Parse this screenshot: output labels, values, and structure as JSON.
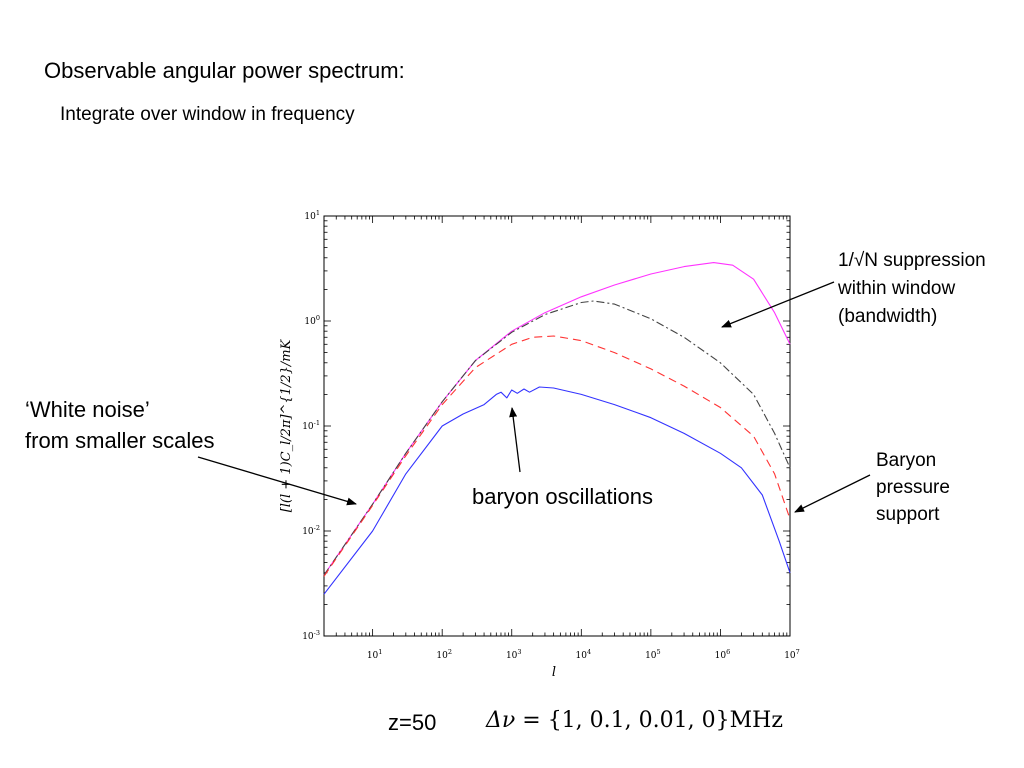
{
  "slide": {
    "title": "Observable angular power spectrum:",
    "subtitle": "Integrate over window in frequency",
    "annotations": {
      "white_noise": [
        "‘White noise’",
        "from smaller scales"
      ],
      "baryon_oscillations": "baryon oscillations",
      "suppression": [
        "1/√N suppression",
        "within window",
        "(bandwidth)"
      ],
      "pressure": [
        "Baryon",
        "pressure",
        "support"
      ]
    },
    "redshift": "z=50",
    "bandwidths_prefix": "Δν",
    "bandwidths_eq": " = ",
    "bandwidths_values": "{1, 0.1, 0.01, 0}MHz"
  },
  "chart_data": {
    "type": "line",
    "scale": "log-log",
    "xlabel": "l",
    "ylabel": "[l(l + 1)C_l/2π]^{1/2}/mK",
    "xlim": [
      2,
      10000000
    ],
    "ylim": [
      0.001,
      10
    ],
    "x_ticks": [
      "10^1",
      "10^2",
      "10^3",
      "10^4",
      "10^5",
      "10^6",
      "10^7"
    ],
    "y_ticks": [
      "10^-3",
      "10^-2",
      "10^-1",
      "10^0",
      "10^1"
    ],
    "grid": false,
    "series": [
      {
        "color": "#ff33ff",
        "dash": "solid",
        "x": [
          2,
          10,
          30,
          100,
          300,
          1000,
          3000,
          10000,
          30000,
          100000,
          300000,
          800000,
          1500000,
          3000000,
          6000000,
          10000000
        ],
        "y": [
          0.0038,
          0.018,
          0.055,
          0.17,
          0.42,
          0.8,
          1.2,
          1.7,
          2.2,
          2.8,
          3.3,
          3.6,
          3.4,
          2.5,
          1.2,
          0.6
        ]
      },
      {
        "color": "#444444",
        "dash": "dash-dot",
        "x": [
          2,
          10,
          30,
          100,
          300,
          1000,
          3000,
          10000,
          15000,
          30000,
          100000,
          300000,
          1000000,
          3000000,
          6000000,
          10000000
        ],
        "y": [
          0.0038,
          0.018,
          0.055,
          0.17,
          0.42,
          0.78,
          1.15,
          1.5,
          1.55,
          1.45,
          1.05,
          0.7,
          0.4,
          0.2,
          0.085,
          0.04
        ]
      },
      {
        "color": "#ff3333",
        "dash": "dashed",
        "x": [
          2,
          10,
          30,
          100,
          300,
          1000,
          2000,
          4000,
          10000,
          30000,
          100000,
          300000,
          1000000,
          3000000,
          6000000,
          10000000
        ],
        "y": [
          0.0037,
          0.0175,
          0.052,
          0.16,
          0.36,
          0.6,
          0.7,
          0.72,
          0.65,
          0.5,
          0.35,
          0.24,
          0.15,
          0.08,
          0.035,
          0.013
        ]
      },
      {
        "color": "#3333ff",
        "dash": "solid",
        "x": [
          2,
          10,
          30,
          100,
          200,
          400,
          600,
          700,
          850,
          1000,
          1200,
          1500,
          1800,
          2500,
          4000,
          10000,
          30000,
          100000,
          300000,
          1000000,
          2000000,
          4000000,
          7000000,
          10000000
        ],
        "y": [
          0.0025,
          0.01,
          0.035,
          0.1,
          0.13,
          0.16,
          0.2,
          0.21,
          0.185,
          0.22,
          0.205,
          0.225,
          0.21,
          0.235,
          0.23,
          0.2,
          0.16,
          0.12,
          0.085,
          0.055,
          0.04,
          0.022,
          0.008,
          0.004
        ]
      }
    ]
  },
  "colors": {
    "background": "#ffffff",
    "text": "#000000",
    "axes": "#000000"
  }
}
